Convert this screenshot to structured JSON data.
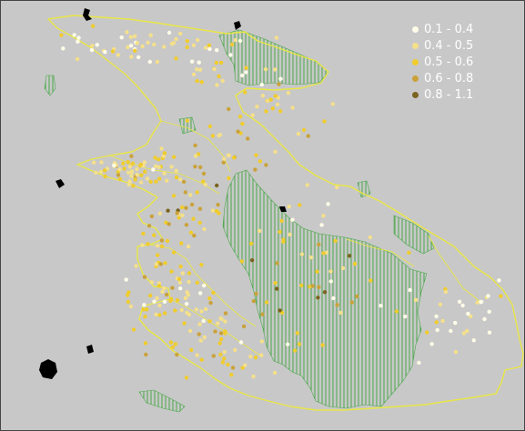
{
  "legend": {
    "classes": [
      {
        "label": "0.1 - 0.4",
        "color": "#fffde8"
      },
      {
        "label": "0.4 - 0.5",
        "color": "#f5e08a"
      },
      {
        "label": "0.5 - 0.6",
        "color": "#f0cc2c"
      },
      {
        "label": "0.6 - 0.8",
        "color": "#caa23a"
      },
      {
        "label": "0.8 - 1.1",
        "color": "#7a6420"
      }
    ]
  },
  "colors": {
    "background": "#c8c8c8",
    "boundary": "#e9e646",
    "protected_area_hatch": "#4aa84a",
    "outlier_feature": "#000000"
  }
}
